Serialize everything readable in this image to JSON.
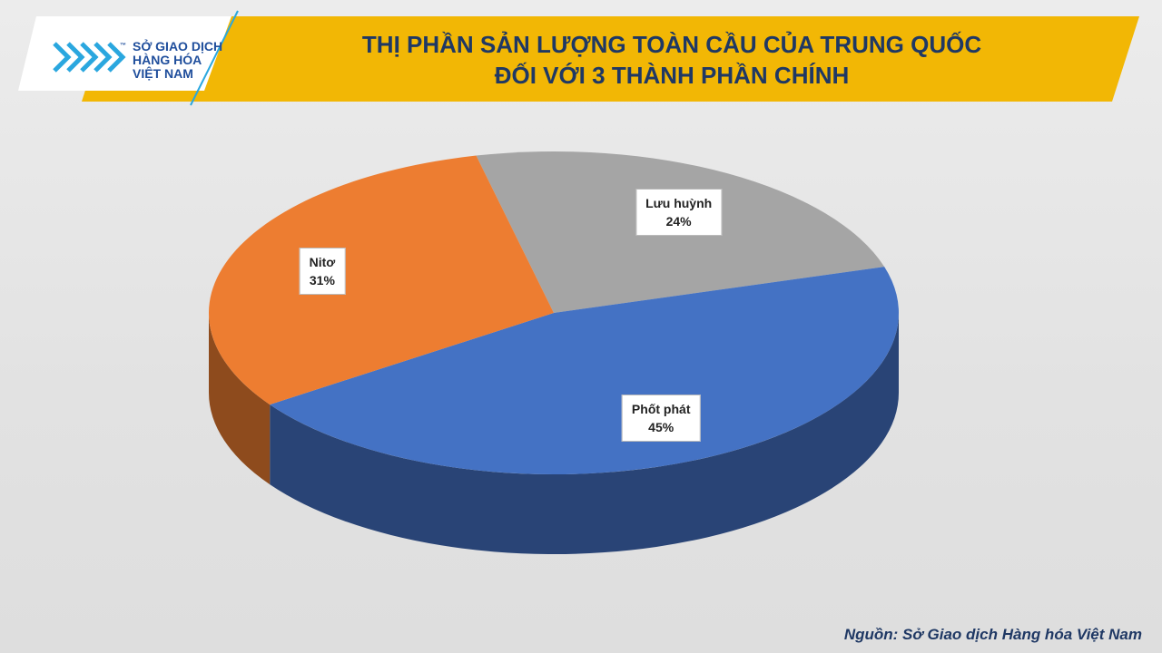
{
  "logo": {
    "line1": "SỞ GIAO DỊCH",
    "line2": "HÀNG HÓA",
    "line3": "VIỆT NAM",
    "mark": "™"
  },
  "chart_data": {
    "type": "pie",
    "title": "THỊ PHẦN SẢN LƯỢNG TOÀN CẦU CỦA TRUNG QUỐC\nĐỐI VỚI 3 THÀNH PHẦN CHÍNH",
    "categories": [
      "Lưu huỳnh",
      "Phốt phát",
      "Nitơ"
    ],
    "values": [
      24,
      45,
      31
    ],
    "value_labels": [
      "24%",
      "45%",
      "31%"
    ],
    "colors": [
      "#a5a5a5",
      "#4472c4",
      "#ed7d31"
    ],
    "three_d": true
  },
  "source": "Nguồn: Sở Giao dịch Hàng hóa Việt Nam"
}
